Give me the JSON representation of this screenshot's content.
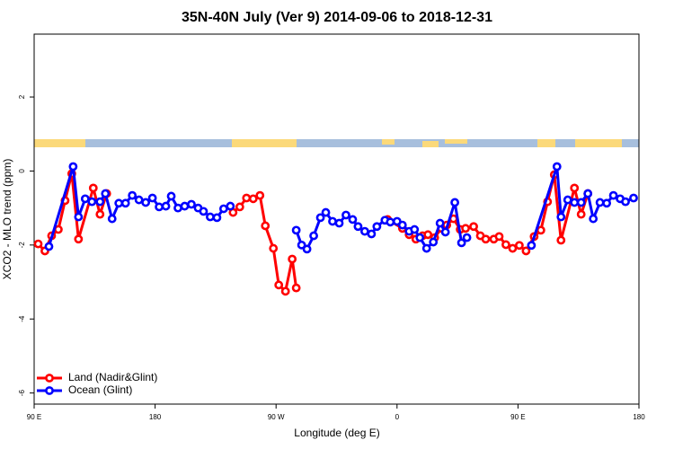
{
  "chart_data": {
    "type": "line",
    "title": "35N-40N July (Ver 9)   2014-09-06 to 2018-12-31",
    "x_label": "Longitude (deg E)",
    "y_label": "XCO2 - MLO trend (ppm)",
    "xlim": [
      90,
      540
    ],
    "ylim": [
      -6.3,
      3.7
    ],
    "xticks": [
      {
        "value": 90,
        "label": "90 E"
      },
      180,
      {
        "value": 270,
        "label": "90 W"
      },
      {
        "value": 360,
        "label": "0"
      },
      {
        "value": 450,
        "label": "90 E"
      },
      {
        "value": 540,
        "label": "180"
      }
    ],
    "yticks": [
      -6,
      -4,
      -2,
      0,
      2
    ],
    "legend": "bottomleft",
    "series": [
      {
        "name": "Land (Nadir&Glint)",
        "color": "#ff0000",
        "x": [
          93,
          98,
          103,
          108,
          113,
          118,
          123,
          134,
          139,
          144,
          190,
          238,
          243,
          248,
          253,
          258,
          262,
          268,
          272,
          277,
          282,
          285,
          320,
          353,
          364,
          369,
          374,
          379,
          383,
          388,
          393,
          397,
          402,
          407,
          411,
          417,
          422,
          426,
          432,
          436,
          441,
          446,
          451,
          456,
          462,
          467,
          472,
          477,
          482,
          492,
          497,
          502
        ],
        "values": [
          -1.97,
          -2.16,
          -1.75,
          -1.58,
          -0.8,
          -0.07,
          -1.84,
          -0.46,
          -1.17,
          -0.61,
          null,
          -1.12,
          -0.97,
          -0.73,
          -0.75,
          -0.66,
          -1.48,
          -2.09,
          -3.08,
          -3.25,
          -2.38,
          -3.16,
          null,
          -1.31,
          -1.55,
          -1.72,
          -1.84,
          -1.75,
          -1.72,
          -1.8,
          -1.55,
          -1.46,
          -1.29,
          -1.58,
          -1.55,
          -1.5,
          -1.75,
          -1.84,
          -1.84,
          -1.77,
          -1.99,
          -2.09,
          -2.01,
          -2.16,
          -1.77,
          -1.6,
          -0.83,
          -0.1,
          -1.87,
          -0.46,
          -1.17,
          -0.61
        ]
      },
      {
        "name": "Ocean (Glint)",
        "color": "#0000ff",
        "x": [
          101,
          119,
          123,
          128,
          133,
          139,
          143,
          148,
          153,
          158,
          163,
          168,
          173,
          178,
          183,
          188,
          192,
          197,
          202,
          207,
          212,
          216,
          221,
          226,
          231,
          236,
          260,
          285,
          289,
          293,
          298,
          303,
          307,
          312,
          317,
          322,
          327,
          331,
          336,
          341,
          345,
          351,
          355,
          360,
          364,
          369,
          373,
          377,
          382,
          387,
          392,
          396,
          403,
          408,
          412,
          440,
          460,
          479,
          482,
          487,
          492,
          497,
          502,
          506,
          511,
          516,
          521,
          526,
          530,
          536
        ],
        "values": [
          -2.04,
          0.12,
          -1.24,
          -0.75,
          -0.83,
          -0.83,
          -0.61,
          -1.29,
          -0.87,
          -0.87,
          -0.66,
          -0.78,
          -0.85,
          -0.73,
          -0.97,
          -0.95,
          -0.68,
          -1.0,
          -0.95,
          -0.9,
          -1.0,
          -1.09,
          -1.24,
          -1.26,
          -1.02,
          -0.95,
          null,
          -1.6,
          -2.0,
          -2.11,
          -1.75,
          -1.26,
          -1.12,
          -1.36,
          -1.41,
          -1.19,
          -1.31,
          -1.5,
          -1.63,
          -1.7,
          -1.5,
          -1.33,
          -1.38,
          -1.36,
          -1.46,
          -1.63,
          -1.58,
          -1.8,
          -2.09,
          -1.92,
          -1.41,
          -1.65,
          -0.85,
          -1.94,
          -1.8,
          null,
          -2.01,
          0.12,
          -1.24,
          -0.78,
          -0.85,
          -0.85,
          -0.61,
          -1.29,
          -0.85,
          -0.87,
          -0.66,
          -0.75,
          -0.83,
          -0.73
        ]
      }
    ]
  }
}
